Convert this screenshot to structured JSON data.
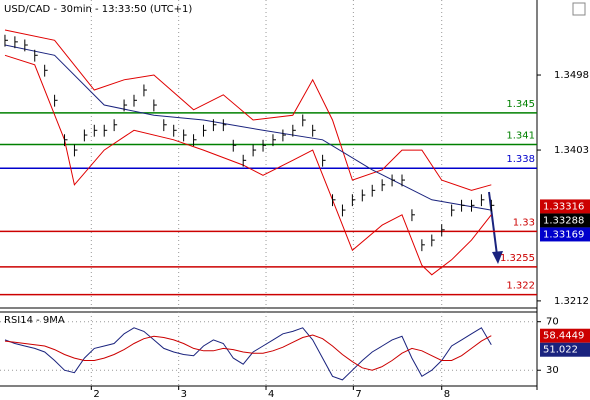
{
  "chart_data": [
    {
      "type": "ohlc",
      "title": "USD/CAD - 30min - 13:33:50 (UTC+1)",
      "xlim": [
        -0.5,
        53.6
      ],
      "xticks": [
        {
          "value": 8.7,
          "label": "2"
        },
        {
          "value": 17.5,
          "label": "3"
        },
        {
          "value": 26.3,
          "label": "4"
        },
        {
          "value": 35.1,
          "label": "7"
        },
        {
          "value": 44,
          "label": "8"
        }
      ],
      "ylim": [
        1.3203,
        1.3593
      ],
      "yticks": [
        1.3498,
        1.3403,
        1.3212
      ],
      "grid": true,
      "bar_color": "#000000",
      "high": [
        1.3549,
        1.3547,
        1.3543,
        1.353,
        1.3511,
        1.3473,
        1.3423,
        1.341,
        1.3429,
        1.3435,
        1.3435,
        1.3442,
        1.3467,
        1.3473,
        1.3486,
        1.3467,
        1.3442,
        1.3435,
        1.3429,
        1.3423,
        1.3435,
        1.3442,
        1.3442,
        1.3416,
        1.3397,
        1.341,
        1.3416,
        1.3423,
        1.3429,
        1.3435,
        1.3448,
        1.3435,
        1.3397,
        1.3347,
        1.3334,
        1.3347,
        1.3353,
        1.3359,
        1.3366,
        1.3372,
        1.3372,
        1.3328,
        1.329,
        1.3296,
        1.3309,
        1.3334,
        1.334,
        1.334,
        1.3347,
        1.334
      ],
      "low": [
        1.3534,
        1.3532,
        1.3528,
        1.3515,
        1.3496,
        1.3458,
        1.3408,
        1.3395,
        1.3414,
        1.342,
        1.342,
        1.3427,
        1.3452,
        1.3458,
        1.3471,
        1.3452,
        1.3427,
        1.342,
        1.3414,
        1.3408,
        1.342,
        1.3427,
        1.3427,
        1.3401,
        1.3382,
        1.3395,
        1.3401,
        1.3408,
        1.3414,
        1.342,
        1.3433,
        1.342,
        1.3382,
        1.3332,
        1.3319,
        1.3332,
        1.3338,
        1.3344,
        1.3351,
        1.3357,
        1.3357,
        1.3313,
        1.3275,
        1.3281,
        1.3294,
        1.3319,
        1.3325,
        1.3325,
        1.3332,
        1.3325
      ],
      "close": [
        1.3542,
        1.354,
        1.3536,
        1.3523,
        1.3504,
        1.3466,
        1.3416,
        1.3403,
        1.3422,
        1.3428,
        1.3428,
        1.3435,
        1.346,
        1.3466,
        1.3479,
        1.346,
        1.3435,
        1.3428,
        1.3422,
        1.3416,
        1.3428,
        1.3435,
        1.3435,
        1.3409,
        1.339,
        1.3403,
        1.3409,
        1.3416,
        1.3422,
        1.3428,
        1.3441,
        1.3428,
        1.339,
        1.334,
        1.3327,
        1.334,
        1.3346,
        1.3352,
        1.3359,
        1.3365,
        1.3365,
        1.3321,
        1.3283,
        1.3289,
        1.3302,
        1.3327,
        1.3333,
        1.3333,
        1.334,
        1.3333
      ],
      "lines": [
        {
          "color": "#e00000",
          "x": [
            0,
            5,
            9,
            12,
            15,
            19,
            22,
            25,
            29,
            31,
            33,
            35,
            38,
            40,
            42,
            44,
            47,
            49
          ],
          "values": [
            1.3555,
            1.3542,
            1.3479,
            1.3492,
            1.3498,
            1.3454,
            1.3473,
            1.3441,
            1.3447,
            1.3492,
            1.3441,
            1.3365,
            1.3378,
            1.3403,
            1.3403,
            1.3365,
            1.3352,
            1.3359
          ]
        },
        {
          "color": "#e00000",
          "x": [
            0,
            3,
            6,
            7,
            10,
            13,
            17,
            20,
            24,
            26,
            29,
            31,
            33,
            35,
            38,
            40,
            42,
            43,
            45,
            47,
            49
          ],
          "values": [
            1.3523,
            1.3511,
            1.3416,
            1.3359,
            1.3403,
            1.3428,
            1.3416,
            1.3403,
            1.3384,
            1.3371,
            1.339,
            1.3403,
            1.334,
            1.3276,
            1.3308,
            1.3321,
            1.3257,
            1.3245,
            1.3264,
            1.3289,
            1.3321
          ]
        },
        {
          "color": "#1a237e",
          "x": [
            0,
            5,
            10,
            15,
            20,
            26,
            32,
            37,
            43,
            49
          ],
          "values": [
            1.3536,
            1.3523,
            1.346,
            1.3447,
            1.3441,
            1.3428,
            1.3416,
            1.3378,
            1.334,
            1.3327
          ]
        }
      ],
      "levels": [
        {
          "value": 1.345,
          "color": "#008000"
        },
        {
          "value": 1.341,
          "color": "#008000"
        },
        {
          "value": 1.338,
          "color": "#0000cc"
        },
        {
          "value": 1.33,
          "color": "#cc0000"
        },
        {
          "value": 1.3255,
          "color": "#cc0000"
        },
        {
          "value": 1.322,
          "color": "#cc0000"
        }
      ],
      "price_tags": [
        {
          "value": 1.33316,
          "color": "#cc0000"
        },
        {
          "value": 1.33288,
          "color": "#000000"
        },
        {
          "value": 1.33169,
          "color": "#0000cc"
        }
      ]
    },
    {
      "type": "line",
      "title": "RSI14 - 9MA",
      "xlim": [
        -0.5,
        53.6
      ],
      "ylim": [
        17,
        78
      ],
      "yticks": [
        70,
        30
      ],
      "series": [
        {
          "color": "#1a237e",
          "values": [
            55,
            52,
            50,
            48,
            45,
            38,
            30,
            28,
            40,
            48,
            50,
            52,
            60,
            65,
            62,
            55,
            48,
            45,
            43,
            42,
            50,
            55,
            52,
            40,
            35,
            45,
            50,
            55,
            60,
            62,
            65,
            55,
            40,
            25,
            22,
            30,
            38,
            45,
            50,
            55,
            58,
            40,
            25,
            30,
            38,
            50,
            55,
            60,
            65,
            51.022
          ]
        },
        {
          "color": "#cc0000",
          "values": [
            54,
            53,
            52,
            51,
            50,
            47,
            43,
            40,
            38,
            38,
            40,
            43,
            47,
            52,
            56,
            58,
            57,
            55,
            52,
            48,
            46,
            46,
            48,
            47,
            45,
            44,
            44,
            46,
            49,
            53,
            57,
            59,
            56,
            50,
            43,
            37,
            32,
            30,
            33,
            38,
            44,
            48,
            46,
            42,
            38,
            38,
            42,
            48,
            54,
            58.4449
          ]
        }
      ]
    }
  ]
}
